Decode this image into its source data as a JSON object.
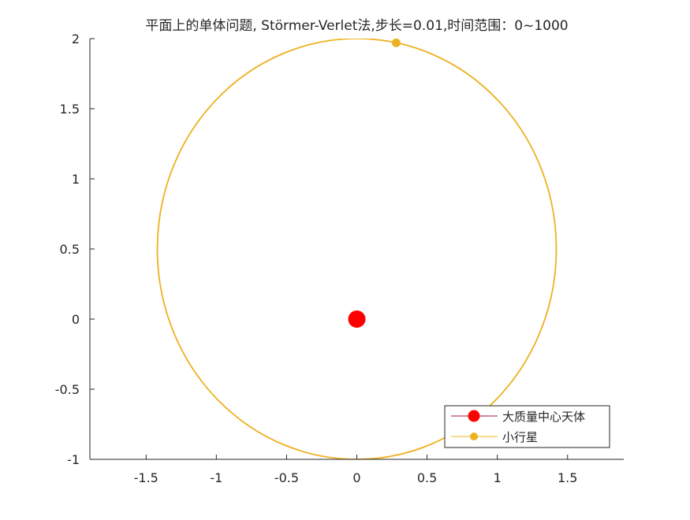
{
  "chart_data": {
    "type": "line",
    "title": "平面上的单体问题, Störmer-Verlet法,步长=0.01,时间范围：0~1000",
    "xlabel": "",
    "ylabel": "",
    "xlim": [
      -1.9,
      1.9
    ],
    "ylim": [
      -1,
      2
    ],
    "xticks": [
      "-1.5",
      "-1",
      "-0.5",
      "0",
      "0.5",
      "1",
      "1.5"
    ],
    "yticks": [
      "-1",
      "-0.5",
      "0",
      "0.5",
      "1",
      "1.5",
      "2"
    ],
    "grid": false,
    "legend_location": "bottom-right",
    "central_body": {
      "name": "大质量中心天体",
      "x": 0,
      "y": 0,
      "color": "#ff0000",
      "line_color": "#a2142f"
    },
    "orbit": {
      "name": "小行星",
      "shape": "ellipse",
      "center_x": 0,
      "center_y": 0.5,
      "semi_axis_x": 1.42,
      "semi_axis_y": 1.5,
      "color": "#edb120"
    },
    "asteroid_point": {
      "x": 0.28,
      "y": 1.97,
      "color": "#edb120"
    }
  }
}
